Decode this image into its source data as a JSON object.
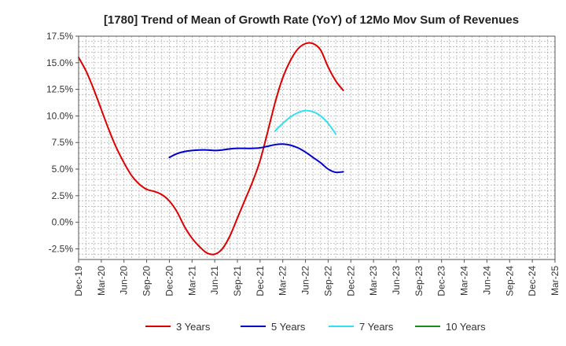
{
  "chart_data": {
    "type": "line",
    "title": "[1780]  Trend of Mean of Growth Rate (YoY) of 12Mo Mov Sum of Revenues",
    "xlabel": "",
    "ylabel": "",
    "ylim": [
      -3.5,
      17.5
    ],
    "y_ticks": [
      -2.5,
      0.0,
      2.5,
      5.0,
      7.5,
      10.0,
      12.5,
      15.0,
      17.5
    ],
    "y_tick_labels": [
      "-2.5%",
      "0.0%",
      "2.5%",
      "5.0%",
      "7.5%",
      "10.0%",
      "12.5%",
      "15.0%",
      "17.5%"
    ],
    "x_tick_labels": [
      "Dec-19",
      "Mar-20",
      "Jun-20",
      "Sep-20",
      "Dec-20",
      "Mar-21",
      "Jun-21",
      "Sep-21",
      "Dec-21",
      "Mar-22",
      "Jun-22",
      "Sep-22",
      "Dec-22",
      "Mar-23",
      "Jun-23",
      "Sep-23",
      "Dec-23",
      "Mar-24",
      "Jun-24",
      "Sep-24",
      "Dec-24",
      "Mar-25"
    ],
    "grid": true,
    "legend_position": "bottom",
    "series": [
      {
        "name": "3 Years",
        "color": "#dd0000",
        "start_index": 0,
        "values": [
          15.5,
          14.2,
          12.5,
          10.6,
          8.7,
          7.0,
          5.6,
          4.4,
          3.6,
          3.1,
          2.9,
          2.6,
          2.0,
          1.0,
          -0.4,
          -1.5,
          -2.3,
          -2.9,
          -3.0,
          -2.5,
          -1.3,
          0.4,
          2.1,
          3.8,
          5.8,
          8.5,
          11.3,
          13.6,
          15.2,
          16.3,
          16.8,
          16.8,
          16.2,
          14.6,
          13.3,
          12.4
        ]
      },
      {
        "name": "5 Years",
        "color": "#0000cc",
        "start_index": 12,
        "values": [
          6.1,
          6.45,
          6.65,
          6.75,
          6.8,
          6.8,
          6.75,
          6.8,
          6.9,
          6.95,
          6.95,
          6.95,
          7.0,
          7.15,
          7.3,
          7.35,
          7.25,
          7.0,
          6.6,
          6.1,
          5.6,
          5.0,
          4.7,
          4.75
        ]
      },
      {
        "name": "7 Years",
        "color": "#33e0f0",
        "start_index": 26,
        "values": [
          8.6,
          9.3,
          9.9,
          10.3,
          10.5,
          10.4,
          10.0,
          9.3,
          8.3
        ]
      },
      {
        "name": "10 Years",
        "color": "#1a8a1a",
        "start_index": 0,
        "values": []
      }
    ]
  }
}
